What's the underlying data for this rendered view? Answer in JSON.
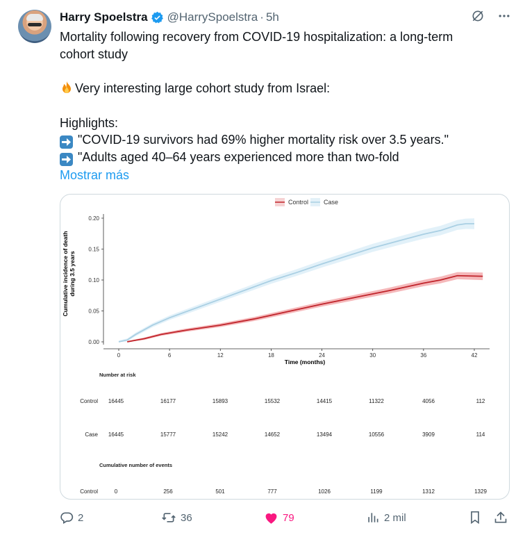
{
  "tweet": {
    "author_name": "Harry Spoelstra",
    "handle": "@HarrySpoelstra",
    "separator": "·",
    "time": "5h",
    "title_line1": "Mortality following recovery from COVID-19 hospitalization: a long-term",
    "title_line2": "cohort study",
    "intro": "Very interesting large cohort study from Israel:",
    "highlights_label": "Highlights:",
    "bullet1": "\"COVID-19 survivors had 69% higher mortality risk over 3.5 years.\"",
    "bullet2": "\"Adults aged 40–64 years experienced more than two-fold",
    "show_more": "Mostrar más"
  },
  "actions": {
    "replies": "2",
    "reposts": "36",
    "likes": "79",
    "views": "2 mil"
  },
  "colors": {
    "control": "#c0242b",
    "control_band": "#f2a6a9",
    "case": "#a9cfe3",
    "case_band": "#dbeef7",
    "link": "#1d9bf0",
    "like": "#f91880"
  },
  "chart_data": {
    "type": "line",
    "legend_position": "top",
    "ylabel_line1": "Cumulative incidence of death",
    "ylabel_line2": "during 3.5 years",
    "xlabel": "Time (months)",
    "xlim": [
      0,
      42
    ],
    "ylim": [
      0,
      0.2
    ],
    "x_ticks": [
      0,
      6,
      12,
      18,
      24,
      30,
      36,
      42
    ],
    "y_ticks": [
      "0.00",
      "0.05",
      "0.10",
      "0.15",
      "0.20"
    ],
    "series": [
      {
        "name": "Control",
        "x": [
          1,
          3,
          5,
          8,
          12,
          16,
          20,
          24,
          28,
          32,
          36,
          38,
          40,
          43
        ],
        "y": [
          0.0,
          0.005,
          0.012,
          0.019,
          0.027,
          0.037,
          0.049,
          0.061,
          0.072,
          0.083,
          0.095,
          0.1,
          0.107,
          0.106
        ]
      },
      {
        "name": "Case",
        "x": [
          0,
          1,
          2,
          4,
          6,
          9,
          12,
          15,
          18,
          21,
          24,
          27,
          30,
          33,
          36,
          38,
          40,
          41,
          42
        ],
        "y": [
          0.0,
          0.003,
          0.012,
          0.027,
          0.039,
          0.054,
          0.069,
          0.084,
          0.099,
          0.112,
          0.126,
          0.139,
          0.152,
          0.163,
          0.174,
          0.18,
          0.189,
          0.191,
          0.191
        ]
      }
    ],
    "risk_table": {
      "title": "Number at risk",
      "rows": [
        {
          "label": "Control",
          "values": [
            "16445",
            "16177",
            "15893",
            "15532",
            "14415",
            "11322",
            "4056",
            "112"
          ]
        },
        {
          "label": "Case",
          "values": [
            "16445",
            "15777",
            "15242",
            "14652",
            "13494",
            "10556",
            "3909",
            "114"
          ]
        }
      ]
    },
    "events_table": {
      "title": "Cumulative number of events",
      "rows": [
        {
          "label": "Control",
          "values": [
            "0",
            "256",
            "501",
            "777",
            "1026",
            "1199",
            "1312",
            "1329"
          ]
        }
      ]
    }
  }
}
